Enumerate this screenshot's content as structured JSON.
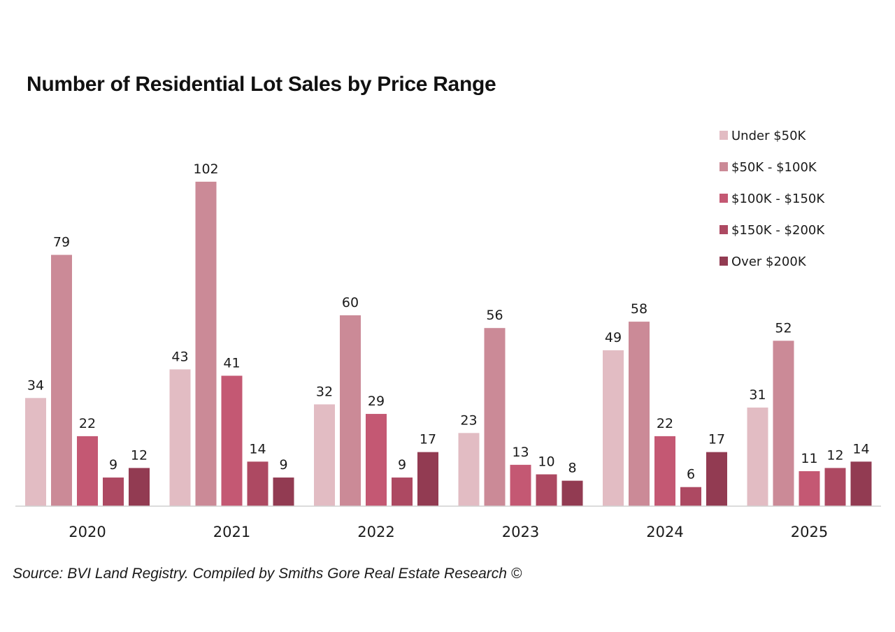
{
  "chart_data": {
    "type": "bar",
    "title": "Number of Residential Lot Sales by Price Range",
    "xlabel": "",
    "ylabel": "",
    "ylim": [
      0,
      102
    ],
    "grid": false,
    "legend_position": "top-right",
    "categories": [
      "2020",
      "2021",
      "2022",
      "2023",
      "2024",
      "2025"
    ],
    "series": [
      {
        "name": "Under $50K",
        "color": "#e2bcc3",
        "values": [
          34,
          43,
          32,
          23,
          49,
          31
        ]
      },
      {
        "name": "$50K - $100K",
        "color": "#cb8a97",
        "values": [
          79,
          102,
          60,
          56,
          58,
          52
        ]
      },
      {
        "name": "$100K - $150K",
        "color": "#c45873",
        "values": [
          22,
          41,
          29,
          13,
          22,
          11
        ]
      },
      {
        "name": "$150K - $200K",
        "color": "#ad4962",
        "values": [
          9,
          14,
          9,
          10,
          6,
          12
        ]
      },
      {
        "name": "Over $200K",
        "color": "#923b52",
        "values": [
          12,
          9,
          17,
          8,
          17,
          14
        ]
      }
    ],
    "source": "Source: BVI Land Registry. Compiled by Smiths Gore Real Estate Research ©"
  }
}
